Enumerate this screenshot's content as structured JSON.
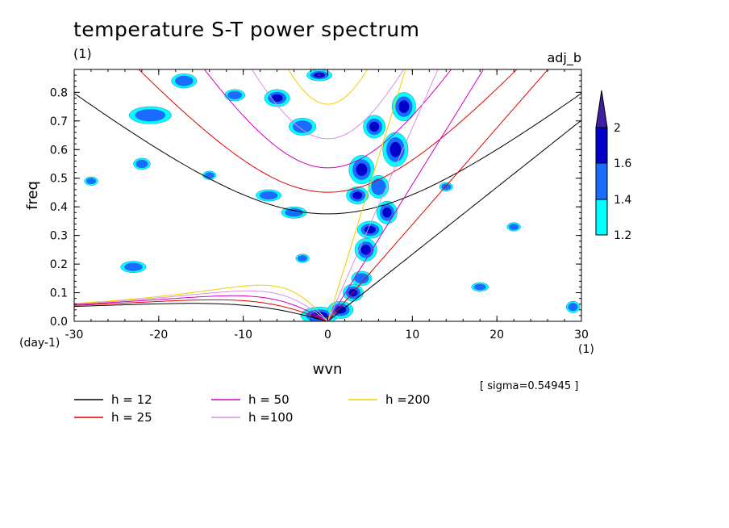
{
  "title": "temperature S-T power spectrum",
  "subtitle_left": "(1)",
  "subtitle_right": "adj_b",
  "sigma_note": "[ sigma=0.54945 ]",
  "chart_data": {
    "type": "heatmap",
    "xlabel": "wvn",
    "ylabel": "freq",
    "x_unit": "(1)",
    "y_unit": "(day-1)",
    "xlim": [
      -30,
      30
    ],
    "ylim": [
      0,
      0.88
    ],
    "xticks": [
      -30,
      -20,
      -10,
      0,
      10,
      20,
      30
    ],
    "xtick_labels": [
      "-30",
      "-20",
      "-10",
      "0",
      "10",
      "20",
      "30"
    ],
    "yticks": [
      0,
      0.1,
      0.2,
      0.3,
      0.4,
      0.5,
      0.6,
      0.7,
      0.8
    ],
    "ytick_labels": [
      "0.0",
      "0.1",
      "0.2",
      "0.3",
      "0.4",
      "0.5",
      "0.6",
      "0.7",
      "0.8"
    ],
    "colorbar": {
      "levels": [
        1.2,
        1.4,
        1.6,
        2
      ],
      "labels": [
        "1.2",
        "1.4",
        "1.6",
        "2"
      ],
      "colors": [
        "#00ffff",
        "#1a6bff",
        "#0000c8",
        "#3d1fa0"
      ]
    },
    "contour_patches": [
      {
        "x": -1,
        "y": 0.02,
        "rx": 2.2,
        "ry": 0.03,
        "level": 3
      },
      {
        "x": 1.5,
        "y": 0.04,
        "rx": 1.5,
        "ry": 0.03,
        "level": 2
      },
      {
        "x": 3,
        "y": 0.1,
        "rx": 1.2,
        "ry": 0.03,
        "level": 2
      },
      {
        "x": 4,
        "y": 0.15,
        "rx": 1.2,
        "ry": 0.025,
        "level": 1
      },
      {
        "x": 4.5,
        "y": 0.25,
        "rx": 1.3,
        "ry": 0.04,
        "level": 2
      },
      {
        "x": 5,
        "y": 0.32,
        "rx": 1.5,
        "ry": 0.03,
        "level": 2
      },
      {
        "x": 7,
        "y": 0.38,
        "rx": 1.2,
        "ry": 0.04,
        "level": 2
      },
      {
        "x": 3.5,
        "y": 0.44,
        "rx": 1.3,
        "ry": 0.03,
        "level": 2
      },
      {
        "x": 6,
        "y": 0.47,
        "rx": 1.2,
        "ry": 0.04,
        "level": 1
      },
      {
        "x": 4,
        "y": 0.53,
        "rx": 1.5,
        "ry": 0.05,
        "level": 2
      },
      {
        "x": 8,
        "y": 0.6,
        "rx": 1.5,
        "ry": 0.06,
        "level": 2
      },
      {
        "x": 5.5,
        "y": 0.68,
        "rx": 1.3,
        "ry": 0.04,
        "level": 2
      },
      {
        "x": 9,
        "y": 0.75,
        "rx": 1.4,
        "ry": 0.05,
        "level": 2
      },
      {
        "x": -6,
        "y": 0.78,
        "rx": 1.5,
        "ry": 0.03,
        "level": 2
      },
      {
        "x": -1,
        "y": 0.86,
        "rx": 1.5,
        "ry": 0.02,
        "level": 3
      },
      {
        "x": -3,
        "y": 0.68,
        "rx": 1.6,
        "ry": 0.03,
        "level": 1
      },
      {
        "x": -17,
        "y": 0.84,
        "rx": 1.5,
        "ry": 0.025,
        "level": 1
      },
      {
        "x": -21,
        "y": 0.72,
        "rx": 2.5,
        "ry": 0.03,
        "level": 1
      },
      {
        "x": -7,
        "y": 0.44,
        "rx": 1.5,
        "ry": 0.02,
        "level": 1
      },
      {
        "x": -4,
        "y": 0.38,
        "rx": 1.5,
        "ry": 0.02,
        "level": 1
      },
      {
        "x": -22,
        "y": 0.55,
        "rx": 1,
        "ry": 0.02,
        "level": 1
      },
      {
        "x": -28,
        "y": 0.49,
        "rx": 0.8,
        "ry": 0.015,
        "level": 1
      },
      {
        "x": -14,
        "y": 0.51,
        "rx": 0.8,
        "ry": 0.015,
        "level": 1
      },
      {
        "x": -23,
        "y": 0.19,
        "rx": 1.5,
        "ry": 0.02,
        "level": 1
      },
      {
        "x": 18,
        "y": 0.12,
        "rx": 1,
        "ry": 0.015,
        "level": 1
      },
      {
        "x": 29,
        "y": 0.05,
        "rx": 0.8,
        "ry": 0.02,
        "level": 1
      },
      {
        "x": 22,
        "y": 0.33,
        "rx": 0.8,
        "ry": 0.015,
        "level": 1
      },
      {
        "x": -3,
        "y": 0.22,
        "rx": 0.8,
        "ry": 0.015,
        "level": 1
      },
      {
        "x": -11,
        "y": 0.79,
        "rx": 1.2,
        "ry": 0.02,
        "level": 1
      },
      {
        "x": 14,
        "y": 0.47,
        "rx": 0.8,
        "ry": 0.015,
        "level": 1
      }
    ],
    "series": [
      {
        "name": "h = 12",
        "h": 12,
        "color": "#000000"
      },
      {
        "name": "h = 25",
        "h": 25,
        "color": "#e00000"
      },
      {
        "name": "h = 50",
        "h": 50,
        "color": "#d000c0"
      },
      {
        "name": "h =100",
        "h": 100,
        "color": "#d890e0"
      },
      {
        "name": "h =200",
        "h": 200,
        "color": "#f0d000"
      }
    ],
    "legend": {
      "position": "bottom",
      "items": [
        {
          "label": "h = 12",
          "color": "#000000"
        },
        {
          "label": "h = 25",
          "color": "#e00000"
        },
        {
          "label": "h = 50",
          "color": "#d000c0"
        },
        {
          "label": "h =100",
          "color": "#d890e0"
        },
        {
          "label": "h =200",
          "color": "#f0d000"
        }
      ]
    }
  }
}
